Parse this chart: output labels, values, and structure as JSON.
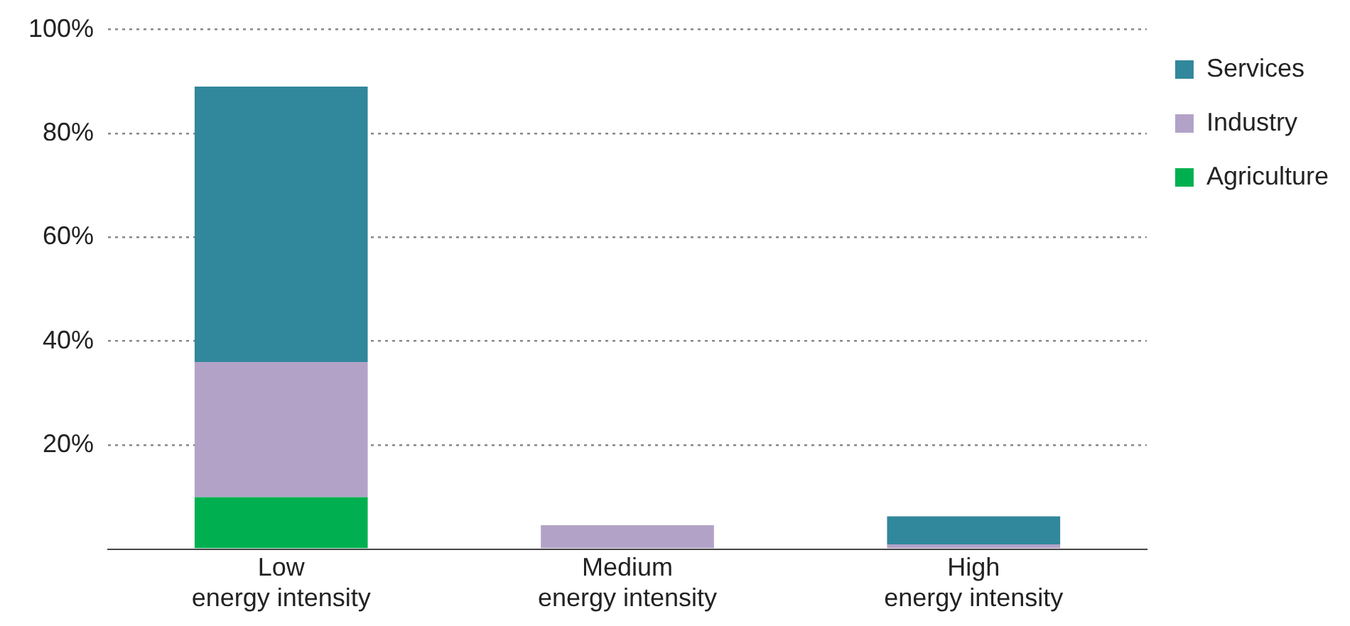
{
  "chart_data": {
    "type": "bar",
    "stacked": true,
    "categories": [
      "Low energy intensity",
      "Medium energy intensity",
      "High energy intensity"
    ],
    "series": [
      {
        "name": "Agriculture",
        "color": "#00b050",
        "values": [
          10,
          0,
          0
        ]
      },
      {
        "name": "Industry",
        "color": "#b3a2c7",
        "values": [
          26,
          4.6,
          0.9
        ]
      },
      {
        "name": "Services",
        "color": "#31879c",
        "values": [
          53,
          0,
          5.4
        ]
      }
    ],
    "ylim": [
      0,
      100
    ],
    "yticks": [
      {
        "value": 0,
        "label": null
      },
      {
        "value": 20,
        "label": "20%"
      },
      {
        "value": 40,
        "label": "40%"
      },
      {
        "value": 60,
        "label": "60%"
      },
      {
        "value": 80,
        "label": "80%"
      },
      {
        "value": 100,
        "label": "100%"
      }
    ],
    "grid": "y",
    "legend": "right"
  }
}
